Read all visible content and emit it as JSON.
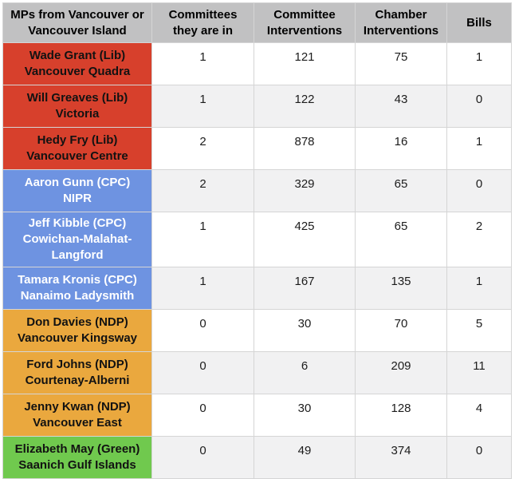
{
  "chart_data": {
    "type": "table",
    "columns": [
      "MPs from Vancouver or Vancouver Island",
      "Committees they are in",
      "Committee Interventions",
      "Chamber Interventions",
      "Bills"
    ],
    "rows": [
      {
        "name": "Wade Grant (Lib)",
        "riding": "Vancouver Quadra",
        "party": "lib",
        "values": [
          1,
          121,
          75,
          1
        ]
      },
      {
        "name": "Will Greaves (Lib)",
        "riding": "Victoria",
        "party": "lib",
        "values": [
          1,
          122,
          43,
          0
        ]
      },
      {
        "name": "Hedy Fry (Lib)",
        "riding": "Vancouver Centre",
        "party": "lib",
        "values": [
          2,
          878,
          16,
          1
        ]
      },
      {
        "name": "Aaron Gunn (CPC)",
        "riding": "NIPR",
        "party": "cpc",
        "values": [
          2,
          329,
          65,
          0
        ]
      },
      {
        "name": "Jeff Kibble (CPC)",
        "riding": "Cowichan-Malahat-Langford",
        "party": "cpc",
        "values": [
          1,
          425,
          65,
          2
        ]
      },
      {
        "name": "Tamara Kronis (CPC)",
        "riding": "Nanaimo Ladysmith",
        "party": "cpc",
        "values": [
          1,
          167,
          135,
          1
        ]
      },
      {
        "name": "Don Davies (NDP)",
        "riding": "Vancouver Kingsway",
        "party": "ndp",
        "values": [
          0,
          30,
          70,
          5
        ]
      },
      {
        "name": "Ford Johns (NDP)",
        "riding": "Courtenay-Alberni",
        "party": "ndp",
        "values": [
          0,
          6,
          209,
          11
        ]
      },
      {
        "name": "Jenny Kwan (NDP)",
        "riding": "Vancouver East",
        "party": "ndp",
        "values": [
          0,
          30,
          128,
          4
        ]
      },
      {
        "name": "Elizabeth May (Green)",
        "riding": "Saanich Gulf Islands",
        "party": "green",
        "values": [
          0,
          49,
          374,
          0
        ]
      }
    ]
  },
  "colors": {
    "lib": "#d7402c",
    "cpc": "#6e93e1",
    "ndp": "#eaa83e",
    "green": "#70c94e",
    "header_bg": "#c1c1c2",
    "row_alt": "#f1f1f2",
    "border": "#d5d5d5",
    "text": "#121212",
    "cpc_text": "#ffffff"
  }
}
